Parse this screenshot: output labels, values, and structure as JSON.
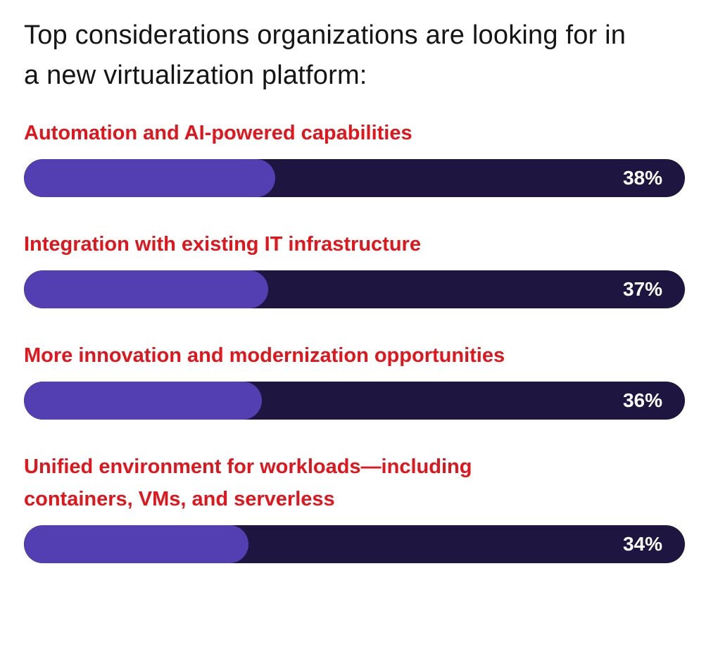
{
  "colors": {
    "title": "#151515",
    "label": "#e4141b",
    "track": "#1e1541",
    "fill": "#533fb1",
    "value_text": "#ffffff"
  },
  "chart_data": {
    "type": "bar",
    "orientation": "horizontal",
    "title": "Top considerations organizations are looking for in a new virtualization platform:",
    "categories": [
      "Automation and AI-powered capabilities",
      "Integration with existing IT infrastructure",
      "More innovation and modernization opportunities",
      "Unified environment for workloads—including containers, VMs, and serverless"
    ],
    "values": [
      38,
      37,
      36,
      34
    ],
    "value_labels": [
      "38%",
      "37%",
      "36%",
      "34%"
    ],
    "unit": "%",
    "xlim": [
      0,
      100
    ],
    "xlabel": "",
    "ylabel": "",
    "grid": false,
    "legend": "none"
  }
}
